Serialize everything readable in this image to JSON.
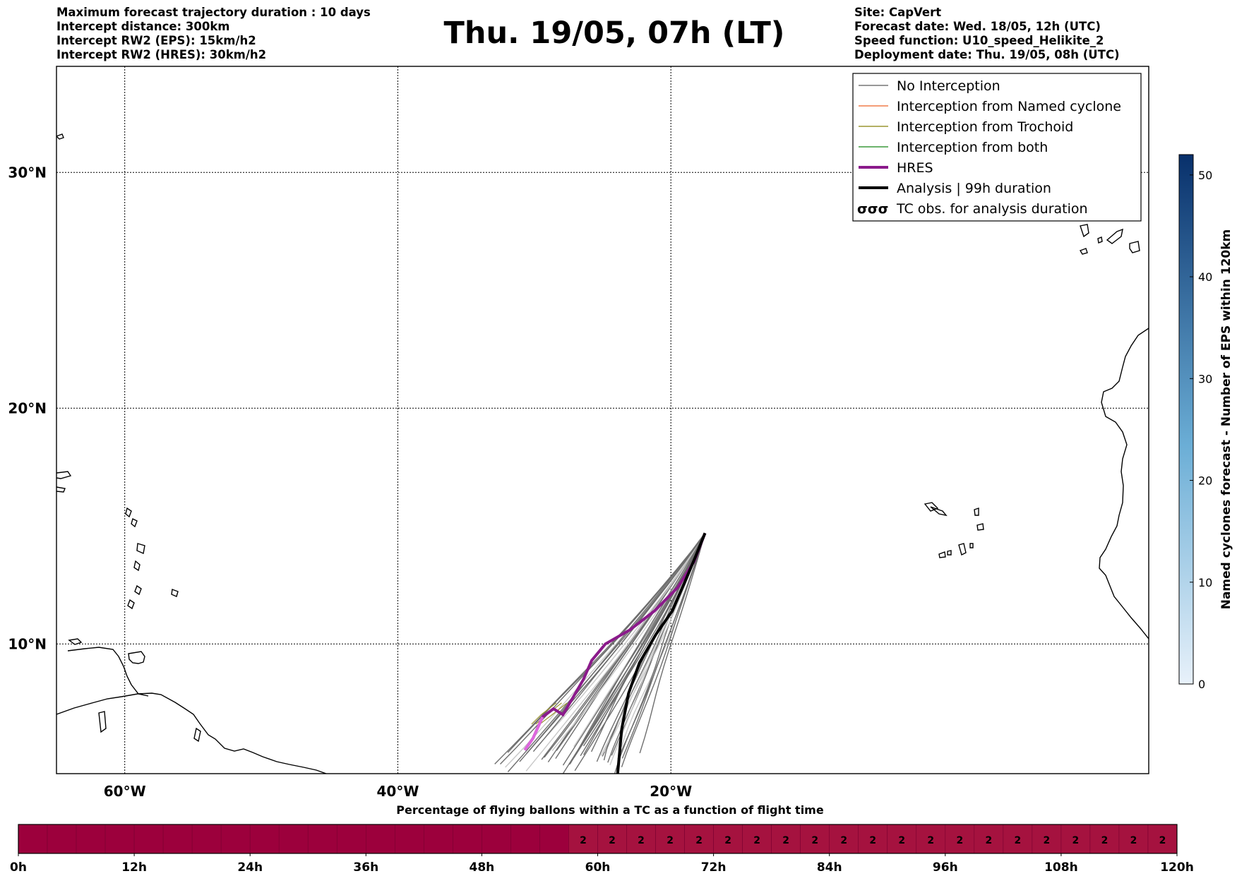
{
  "header": {
    "left_lines": [
      "Maximum forecast trajectory duration : 10 days",
      "Intercept distance: 300km",
      "Intercept RW2 (EPS):  15km/h2",
      "Intercept RW2 (HRES): 30km/h2"
    ],
    "title": "Thu. 19/05, 07h (LT)",
    "right_lines": [
      "Site: CapVert",
      "Forecast date: Wed. 18/05, 12h (UTC)",
      "Speed function: U10_speed_Helikite_2",
      "Deployment date: Thu. 19/05, 08h (UTC)"
    ]
  },
  "chart_data": [
    {
      "type": "line",
      "subtype": "trajectory map",
      "title": "Thu. 19/05, 07h (LT)",
      "lon_range": [
        -65,
        15
      ],
      "lat_range": [
        4.5,
        34.5
      ],
      "x_ticks": [
        {
          "value": -60,
          "label": "60°W"
        },
        {
          "value": -40,
          "label": "40°W"
        },
        {
          "value": -20,
          "label": "20°W"
        }
      ],
      "y_ticks": [
        {
          "value": 10,
          "label": "10°N"
        },
        {
          "value": 20,
          "label": "20°N"
        },
        {
          "value": 30,
          "label": "30°N"
        }
      ],
      "grid": true,
      "legend_position": "top-right",
      "legend": [
        {
          "label": "No Interception",
          "color": "#777777",
          "style": "thin"
        },
        {
          "label": "Interception from Named cyclone",
          "color": "#f07c4a",
          "style": "thin"
        },
        {
          "label": "Interception from Trochoid",
          "color": "#9a9530",
          "style": "thin"
        },
        {
          "label": "Interception from both",
          "color": "#3a9a3a",
          "style": "thin"
        },
        {
          "label": "HRES",
          "color": "#8b1a8b",
          "style": "thick"
        },
        {
          "label": "Analysis | 99h duration",
          "color": "#000000",
          "style": "thick"
        },
        {
          "label": "TC obs. for analysis duration",
          "color": "#000000",
          "style": "symbol"
        }
      ],
      "series": [
        {
          "name": "HRES",
          "color": "#8b1a8b",
          "points": [
            [
              -17.5,
              14.7
            ],
            [
              -18.3,
              13.5
            ],
            [
              -19.5,
              12.4
            ],
            [
              -21.2,
              11.4
            ],
            [
              -23.0,
              10.6
            ],
            [
              -24.8,
              10.0
            ],
            [
              -25.8,
              9.3
            ],
            [
              -26.4,
              8.5
            ],
            [
              -27.1,
              7.8
            ],
            [
              -27.9,
              7.0
            ],
            [
              -28.6,
              7.25
            ],
            [
              -29.4,
              6.9
            ],
            [
              -30.1,
              6.0
            ],
            [
              -30.7,
              5.5
            ]
          ]
        },
        {
          "name": "Analysis | 99h duration",
          "color": "#000000",
          "points": [
            [
              -17.5,
              14.7
            ],
            [
              -18.2,
              13.7
            ],
            [
              -19.0,
              12.6
            ],
            [
              -19.9,
              11.4
            ],
            [
              -21.1,
              10.4
            ],
            [
              -22.3,
              9.2
            ],
            [
              -23.1,
              7.9
            ],
            [
              -23.6,
              6.4
            ],
            [
              -23.9,
              4.5
            ]
          ]
        }
      ]
    },
    {
      "type": "heatmap",
      "subtype": "vertical colorbar",
      "ylabel": "Named cyclones forecast - Number of EPS within 120km",
      "range": [
        0,
        52
      ],
      "ticks": [
        0,
        10,
        20,
        30,
        40,
        50
      ],
      "color_low": "#e8f1fa",
      "color_high": "#08306b"
    },
    {
      "type": "heatmap",
      "subtype": "horizontal time bar",
      "title": "Percentage of flying ballons within a TC as a function of flight time",
      "x_ticks": [
        "0h",
        "12h",
        "24h",
        "36h",
        "48h",
        "60h",
        "72h",
        "84h",
        "96h",
        "108h",
        "120h"
      ],
      "start_h": 0,
      "end_h": 120,
      "step_h": 3,
      "value_start_h": 57,
      "cell_label": "2",
      "base_color": "#9c003c",
      "value_color": "#a5123f"
    }
  ]
}
